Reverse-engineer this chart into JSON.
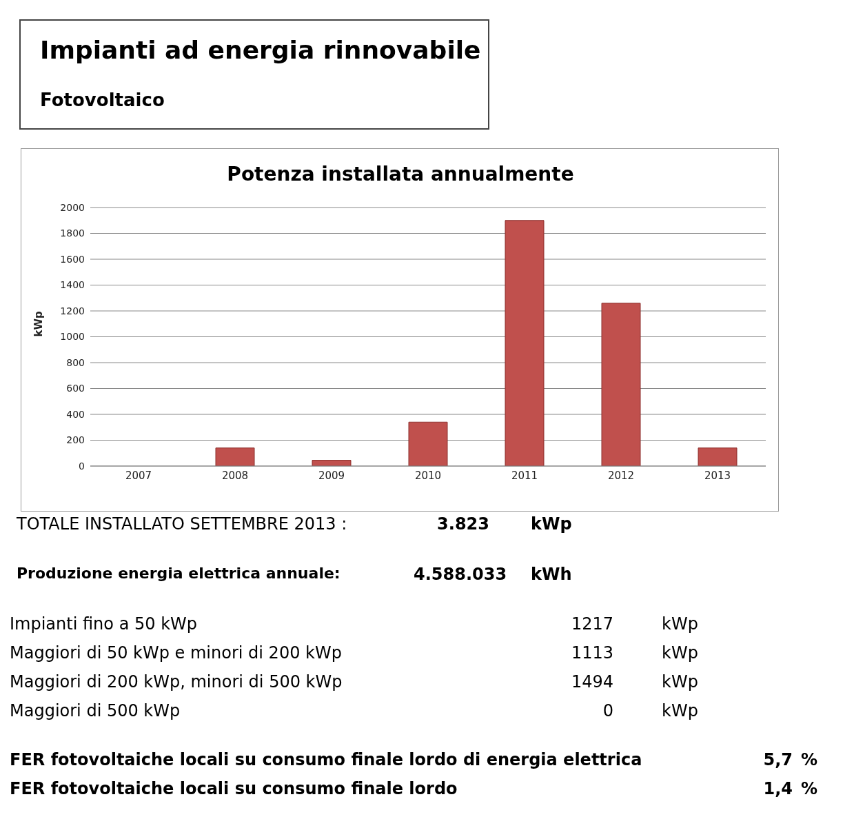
{
  "chart_data": {
    "type": "bar",
    "title": "Potenza installata annualmente",
    "ylabel": "kWp",
    "categories": [
      "2007",
      "2008",
      "2009",
      "2010",
      "2011",
      "2012",
      "2013"
    ],
    "values": [
      0,
      140,
      45,
      340,
      1900,
      1260,
      140
    ],
    "color": "#c0504d",
    "ylim": [
      0,
      2000
    ],
    "yticks": [
      0,
      200,
      400,
      600,
      800,
      1000,
      1200,
      1400,
      1600,
      1800,
      2000
    ],
    "grid": "y",
    "legend": false,
    "annotations": [
      "Impianti ad energia rinnovabile",
      "Fotovoltaico",
      "TOTALE INSTALLATO SETTEMBRE 2013 :",
      "3.823",
      "kWp",
      "Produzione energia elettrica annuale:",
      "4.588.033",
      "kWh",
      "Impianti fino a 50 kWp",
      "1217",
      "kWp",
      "Maggiori di 50 kWp e minori di 200 kWp",
      "1113",
      "kWp",
      "Maggiori di 200 kWp, minori di 500 kWp",
      "1494",
      "kWp",
      "Maggiori di 500 kWp",
      "0",
      "kWp",
      "FER fotovoltaiche locali su consumo finale lordo di energia elettrica",
      "5,7",
      "%",
      "FER fotovoltaiche locali su consumo finale lordo",
      "1,4",
      "%"
    ]
  }
}
